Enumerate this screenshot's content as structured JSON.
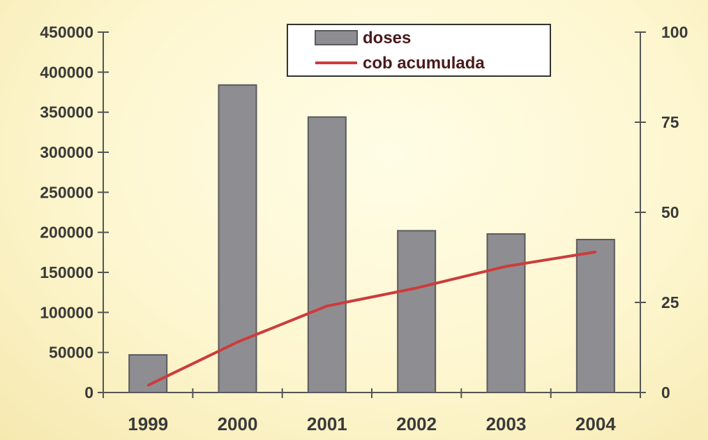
{
  "chart_data": {
    "type": "bar",
    "categories": [
      "1999",
      "2000",
      "2001",
      "2002",
      "2003",
      "2004"
    ],
    "series": [
      {
        "name": "doses",
        "type": "bar",
        "axis": "left",
        "values": [
          47000,
          384000,
          344000,
          202000,
          198000,
          191000
        ]
      },
      {
        "name": "cob acumulada",
        "type": "line",
        "axis": "right",
        "values": [
          2,
          14,
          24,
          29,
          35,
          39
        ]
      }
    ],
    "title": "",
    "xlabel": "",
    "ylabel": "",
    "ylim": [
      0,
      450000
    ],
    "y2lim": [
      0,
      100
    ],
    "yticks": [
      "0",
      "50000",
      "100000",
      "150000",
      "200000",
      "250000",
      "300000",
      "350000",
      "400000",
      "450000"
    ],
    "y2ticks": [
      "0",
      "25",
      "50",
      "75",
      "100"
    ],
    "legend": {
      "position": "top-center",
      "entries": [
        "doses",
        "cob acumulada"
      ]
    },
    "grid": false,
    "colors": {
      "bar": "#8e8e92",
      "bar_edge": "#5a5a5e",
      "line": "#cc3c3c",
      "axis": "#555555"
    }
  }
}
